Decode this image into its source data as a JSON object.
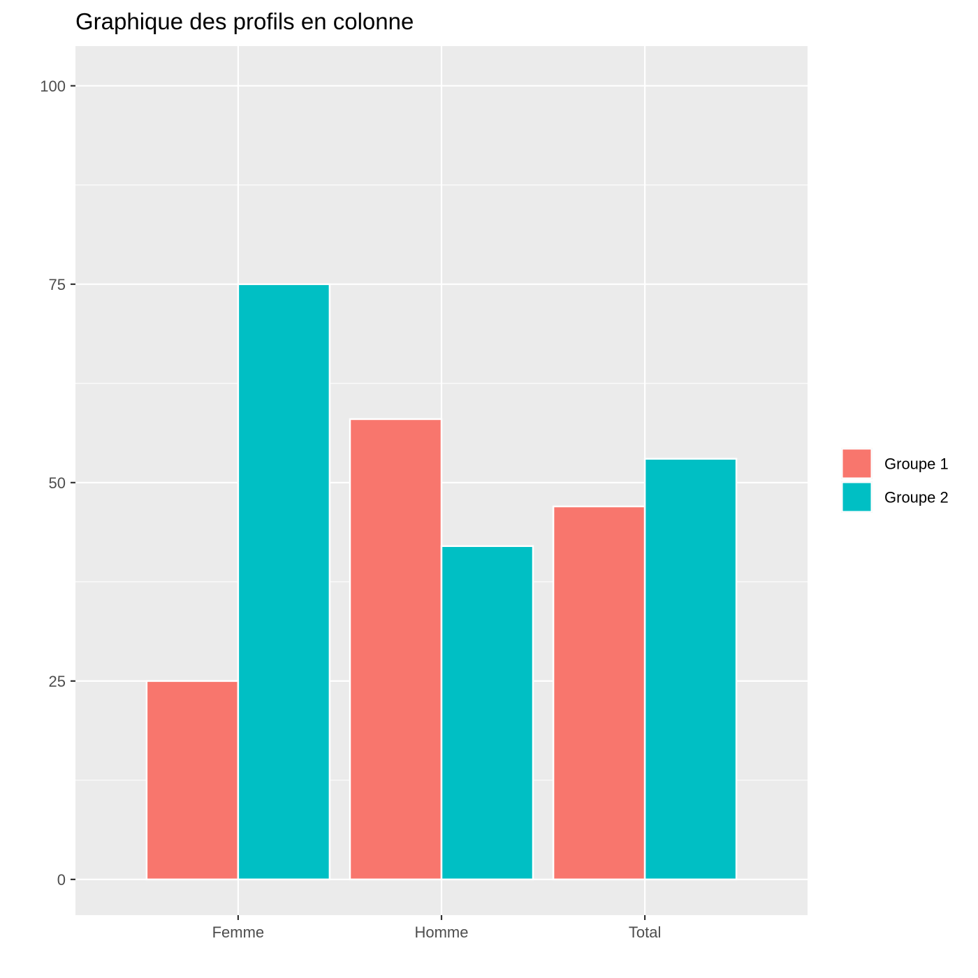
{
  "chart_data": {
    "type": "bar",
    "title": "Graphique des profils en colonne",
    "xlabel": "",
    "ylabel": "",
    "categories": [
      "Femme",
      "Homme",
      "Total"
    ],
    "series": [
      {
        "name": "Groupe 1",
        "values": [
          25,
          58,
          47
        ],
        "color": "#F8766D"
      },
      {
        "name": "Groupe 2",
        "values": [
          75,
          42,
          53
        ],
        "color": "#00BFC4"
      }
    ],
    "ylim": [
      -4.5,
      105
    ],
    "yticks": [
      0,
      25,
      50,
      75,
      100
    ],
    "grid": true,
    "legend": "right",
    "panel_background": "#EBEBEB",
    "grid_color": "#FFFFFF"
  }
}
